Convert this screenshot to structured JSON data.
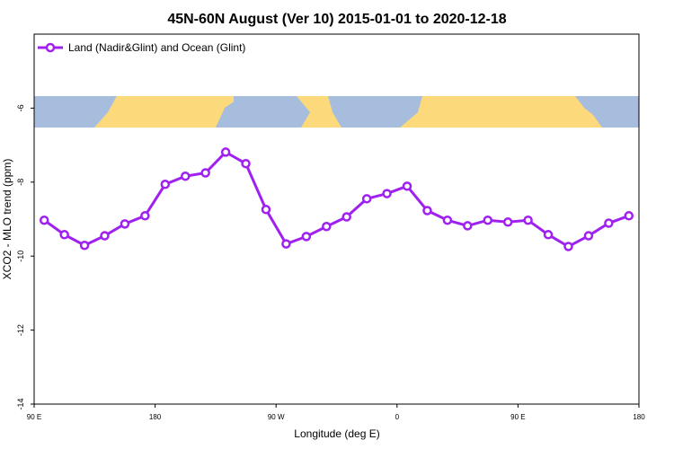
{
  "chart_data": {
    "type": "line",
    "title": "45N-60N August (Ver 10)   2015-01-01 to 2020-12-18",
    "x_label": "Longitude (deg E)",
    "y_label": "XCO2 - MLO trend (ppm)",
    "x": [
      97.5,
      112.5,
      127.5,
      142.5,
      157.5,
      172.5,
      187.5,
      202.5,
      217.5,
      232.5,
      247.5,
      262.5,
      277.5,
      292.5,
      307.5,
      322.5,
      337.5,
      352.5,
      367.5,
      382.5,
      397.5,
      412.5,
      427.5,
      442.5,
      457.5,
      472.5,
      487.5,
      502.5,
      517.5,
      532.5
    ],
    "series": [
      {
        "name": "Land (Nadir&Glint) and Ocean (Glint)",
        "color": "#a020f0",
        "values": [
          -9.03,
          -9.42,
          -9.71,
          -9.45,
          -9.13,
          -8.91,
          -8.06,
          -7.84,
          -7.75,
          -7.19,
          -7.5,
          -8.74,
          -9.67,
          -9.47,
          -9.2,
          -8.94,
          -8.45,
          -8.31,
          -8.11,
          -8.77,
          -9.03,
          -9.18,
          -9.03,
          -9.08,
          -9.03,
          -9.42,
          -9.74,
          -9.45,
          -9.11,
          -8.91
        ]
      }
    ],
    "xlim": [
      90,
      540
    ],
    "xticks": [
      {
        "value": 90,
        "label": "90 E"
      },
      180,
      {
        "value": 270,
        "label": "90 W"
      },
      {
        "value": 360,
        "label": "0"
      },
      {
        "value": 450,
        "label": "90 E"
      },
      {
        "value": 540,
        "label": "180"
      }
    ],
    "ylim": [
      -14,
      -4
    ],
    "yticks": [
      -14,
      -12,
      -10,
      -8,
      -6
    ],
    "grid": false,
    "legend": "upper left"
  }
}
